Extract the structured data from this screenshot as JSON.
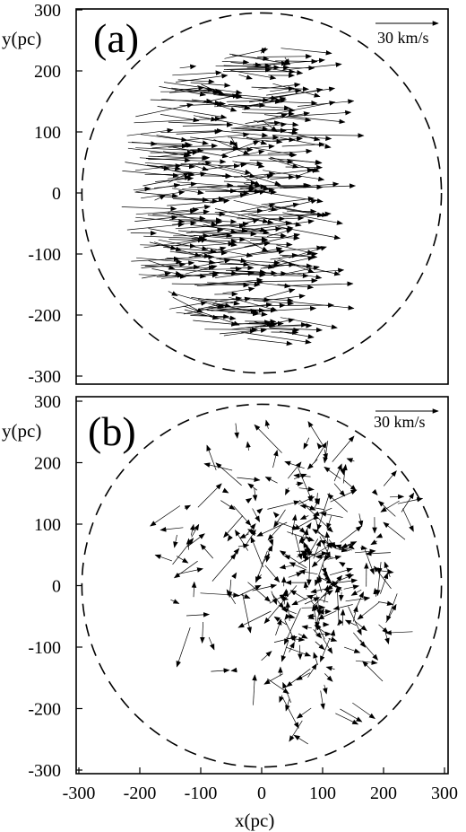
{
  "chart_data": [
    {
      "type": "quiver",
      "panel_label": "(a)",
      "xlim": [
        -300,
        300
      ],
      "ylim": [
        -300,
        300
      ],
      "ylabel": "y(pc)",
      "xlabel": "",
      "yticks": [
        "300",
        "200",
        "100",
        "0",
        "-100",
        "-200",
        "-300"
      ],
      "xticks": [],
      "scale_label": "30 km/s",
      "boundary_circle": {
        "cx": 0,
        "cy": 0,
        "r": 295
      },
      "description": "",
      "flow_mean_vx_kms": 22,
      "flow_mean_vy_kms": 0,
      "seed": 11,
      "n_vectors": 380
    },
    {
      "type": "quiver",
      "panel_label": "(b)",
      "xlim": [
        -300,
        300
      ],
      "ylim": [
        -300,
        300
      ],
      "ylabel": "y(pc)",
      "xlabel": "x(pc)",
      "yticks": [
        "300",
        "200",
        "100",
        "0",
        "-100",
        "-200",
        "-300"
      ],
      "xticks": [
        "-300",
        "-200",
        "-100",
        "0",
        "100",
        "200",
        "300"
      ],
      "scale_label": "30 km/s",
      "boundary_circle": {
        "cx": 0,
        "cy": 0,
        "r": 295
      },
      "description": "",
      "flow_mean_vx_kms": 0,
      "flow_mean_vy_kms": 0,
      "seed": 29,
      "n_vectors": 300
    }
  ]
}
